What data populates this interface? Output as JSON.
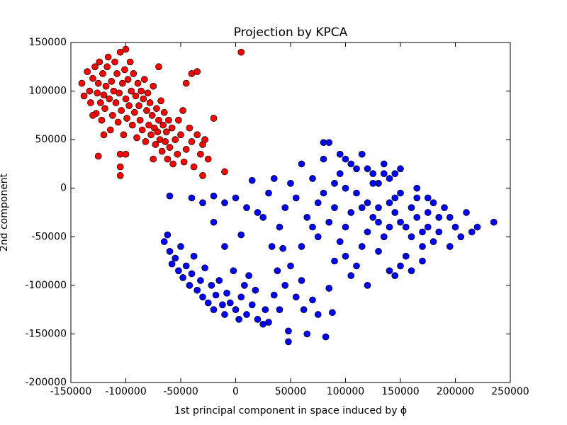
{
  "chart_data": {
    "type": "scatter",
    "title": "Projection by KPCA",
    "x_label": "1st principal component in space induced by ϕ",
    "y_label": "2nd component",
    "xlim": [
      -150000,
      250000
    ],
    "ylim": [
      -200000,
      150000
    ],
    "xticks": [
      -150000,
      -100000,
      -50000,
      0,
      50000,
      100000,
      150000,
      200000,
      250000
    ],
    "yticks": [
      -200000,
      -150000,
      -100000,
      -50000,
      0,
      50000,
      100000,
      150000
    ],
    "grid": false,
    "series": [
      {
        "color": "#ff0000",
        "x": [
          -140000,
          -138000,
          -135000,
          -133000,
          -132000,
          -130000,
          -128000,
          -127000,
          -126000,
          -125000,
          -124000,
          -123000,
          -122000,
          -121000,
          -120000,
          -119000,
          -118000,
          -117000,
          -116000,
          -115000,
          -114000,
          -113000,
          -112000,
          -111000,
          -110000,
          -109000,
          -108000,
          -107000,
          -106000,
          -105000,
          -104000,
          -103000,
          -102000,
          -101000,
          -100000,
          -99000,
          -98000,
          -97000,
          -96000,
          -95000,
          -94000,
          -93000,
          -92000,
          -91000,
          -90000,
          -89000,
          -88000,
          -87000,
          -86000,
          -85000,
          -84000,
          -83000,
          -82000,
          -81000,
          -80000,
          -79000,
          -78000,
          -77000,
          -76000,
          -75000,
          -74000,
          -73000,
          -72000,
          -71000,
          -70000,
          -69000,
          -68000,
          -67000,
          -66000,
          -65000,
          -64000,
          -63000,
          -62000,
          -61000,
          -60000,
          -58000,
          -57000,
          -55000,
          -53000,
          -52000,
          -50000,
          -48000,
          -47000,
          -45000,
          -42000,
          -40000,
          -38000,
          -35000,
          -32000,
          -30000,
          -28000,
          -25000,
          5000,
          -100000,
          -70000,
          -45000,
          -40000,
          -35000,
          -20000,
          -10000,
          -30000,
          -105000,
          -100000,
          -105000,
          -105000,
          -125000,
          -75000,
          -120000,
          -130000
        ],
        "values": [
          108000,
          95000,
          120000,
          100000,
          88000,
          113000,
          125000,
          77000,
          98000,
          108000,
          130000,
          88000,
          70000,
          118000,
          96000,
          82000,
          105000,
          125000,
          135000,
          92000,
          60000,
          110000,
          75000,
          100000,
          130000,
          88000,
          118000,
          68000,
          98000,
          140000,
          80000,
          108000,
          55000,
          122000,
          92000,
          72000,
          112000,
          85000,
          130000,
          100000,
          65000,
          118000,
          78000,
          95000,
          52000,
          108000,
          85000,
          70000,
          100000,
          60000,
          92000,
          112000,
          48000,
          80000,
          98000,
          65000,
          88000,
          55000,
          75000,
          105000,
          62000,
          45000,
          82000,
          58000,
          70000,
          50000,
          90000,
          38000,
          65000,
          78000,
          48000,
          58000,
          30000,
          70000,
          42000,
          62000,
          25000,
          50000,
          35000,
          70000,
          55000,
          80000,
          27000,
          40000,
          62000,
          48000,
          22000,
          55000,
          35000,
          45000,
          50000,
          30000,
          140000,
          143000,
          125000,
          108000,
          118000,
          120000,
          72000,
          17000,
          13000,
          35000,
          35000,
          22000,
          13000,
          33000,
          30000,
          55000,
          75000
        ]
      },
      {
        "color": "#0000ff",
        "x": [
          -65000,
          -62000,
          -60000,
          -58000,
          -55000,
          -52000,
          -50000,
          -48000,
          -45000,
          -42000,
          -40000,
          -38000,
          -35000,
          -32000,
          -30000,
          -28000,
          -25000,
          -22000,
          -20000,
          -18000,
          -15000,
          -12000,
          -10000,
          -8000,
          -5000,
          -2000,
          0,
          3000,
          5000,
          8000,
          10000,
          12000,
          15000,
          18000,
          20000,
          25000,
          27000,
          30000,
          33000,
          35000,
          38000,
          40000,
          43000,
          45000,
          48000,
          48000,
          50000,
          55000,
          60000,
          62000,
          65000,
          70000,
          75000,
          82000,
          85000,
          88000,
          -60000,
          -40000,
          -30000,
          -20000,
          -10000,
          0,
          10000,
          20000,
          -20000,
          -10000,
          5000,
          30000,
          35000,
          15000,
          25000,
          40000,
          45000,
          50000,
          55000,
          60000,
          65000,
          70000,
          75000,
          80000,
          85000,
          80000,
          90000,
          95000,
          100000,
          105000,
          110000,
          115000,
          120000,
          125000,
          130000,
          135000,
          140000,
          145000,
          150000,
          155000,
          160000,
          165000,
          170000,
          175000,
          180000,
          185000,
          190000,
          195000,
          200000,
          205000,
          210000,
          215000,
          220000,
          235000,
          100000,
          105000,
          110000,
          115000,
          120000,
          125000,
          130000,
          135000,
          140000,
          145000,
          150000,
          155000,
          160000,
          165000,
          170000,
          175000,
          180000,
          185000,
          110000,
          130000,
          150000,
          170000,
          160000,
          90000,
          95000,
          100000,
          105000,
          120000,
          140000,
          145000,
          85000,
          90000,
          75000,
          70000,
          60000,
          95000,
          100000,
          115000,
          125000,
          135000,
          140000,
          150000,
          165000,
          175000,
          195000,
          80000,
          120000,
          130000,
          145000
        ],
        "values": [
          -55000,
          -48000,
          -65000,
          -78000,
          -72000,
          -85000,
          -60000,
          -92000,
          -80000,
          -100000,
          -88000,
          -70000,
          -105000,
          -95000,
          -112000,
          -82000,
          -118000,
          -100000,
          -125000,
          -110000,
          -95000,
          -120000,
          -130000,
          -108000,
          -118000,
          -85000,
          -125000,
          -135000,
          -112000,
          -100000,
          -130000,
          -90000,
          -120000,
          -105000,
          -135000,
          -140000,
          -125000,
          -138000,
          -60000,
          -110000,
          -85000,
          -125000,
          -62000,
          -100000,
          -158000,
          -147000,
          -80000,
          -112000,
          -95000,
          -125000,
          -150000,
          -115000,
          -130000,
          -153000,
          -103000,
          -128000,
          -8000,
          -10000,
          -15000,
          -8000,
          -15000,
          -10000,
          -20000,
          -25000,
          -35000,
          -60000,
          -48000,
          -5000,
          10000,
          8000,
          -30000,
          -40000,
          -20000,
          5000,
          -10000,
          25000,
          -30000,
          10000,
          -50000,
          30000,
          47000,
          47000,
          -20000,
          15000,
          -40000,
          25000,
          -5000,
          -60000,
          20000,
          -30000,
          5000,
          -50000,
          -15000,
          15000,
          -35000,
          -70000,
          -20000,
          0,
          -45000,
          -10000,
          -55000,
          -30000,
          -20000,
          -60000,
          -40000,
          -50000,
          -25000,
          -45000,
          -40000,
          -35000,
          0,
          -25000,
          20000,
          -20000,
          -45000,
          5000,
          -35000,
          15000,
          -40000,
          -25000,
          -5000,
          -40000,
          -50000,
          -30000,
          -60000,
          -40000,
          -15000,
          -45000,
          -80000,
          -65000,
          -80000,
          -75000,
          -85000,
          -75000,
          -55000,
          -70000,
          -90000,
          -100000,
          -85000,
          -90000,
          -35000,
          5000,
          -15000,
          -40000,
          -60000,
          35000,
          30000,
          35000,
          15000,
          25000,
          10000,
          20000,
          -10000,
          -25000,
          -30000,
          -5000,
          -15000,
          -20000,
          -10000
        ]
      }
    ]
  }
}
